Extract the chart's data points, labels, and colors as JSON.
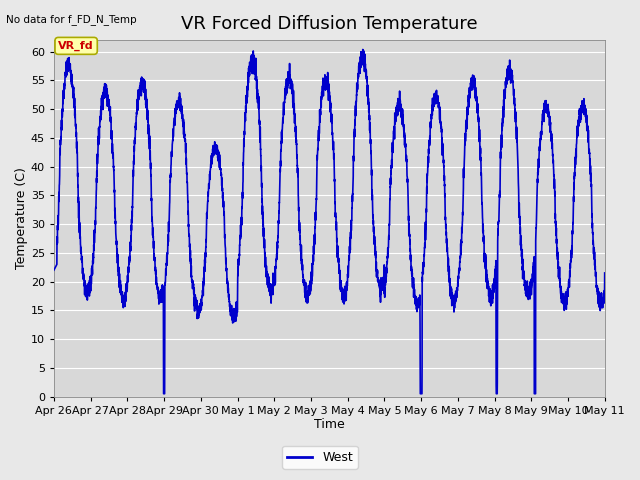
{
  "title": "VR Forced Diffusion Temperature",
  "no_data_label": "No data for f_FD_N_Temp",
  "xlabel": "Time",
  "ylabel": "Temperature (C)",
  "ylim": [
    0,
    62
  ],
  "yticks": [
    0,
    5,
    10,
    15,
    20,
    25,
    30,
    35,
    40,
    45,
    50,
    55,
    60
  ],
  "line_color": "#0000cc",
  "line_width": 1.2,
  "legend_label": "West",
  "legend_line_color": "#0000cc",
  "vr_fd_label": "VR_fd",
  "vr_fd_box_facecolor": "#ffffaa",
  "vr_fd_box_edgecolor": "#aaaa00",
  "vr_fd_text_color": "#cc0000",
  "fig_facecolor": "#e8e8e8",
  "plot_facecolor": "#d8d8d8",
  "grid_color": "#ffffff",
  "title_fontsize": 13,
  "axis_label_fontsize": 9,
  "tick_label_fontsize": 8,
  "x_tick_labels": [
    "Apr 26",
    "Apr 27",
    "Apr 28",
    "Apr 29",
    "Apr 30",
    "May 1",
    "May 2",
    "May 3",
    "May 4",
    "May 5",
    "May 6",
    "May 7",
    "May 8",
    "May 9",
    "May 10",
    "May 11"
  ]
}
